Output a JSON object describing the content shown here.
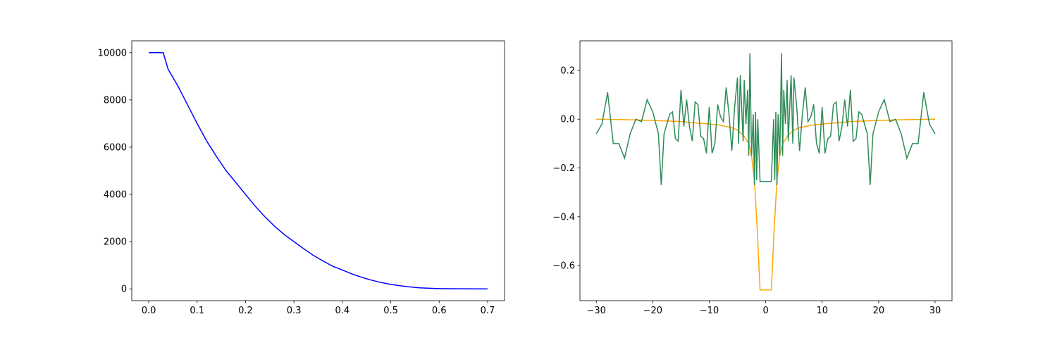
{
  "chart_data": [
    {
      "type": "line",
      "x": [
        0,
        0.02,
        0.03,
        0.04,
        0.06,
        0.08,
        0.1,
        0.12,
        0.14,
        0.16,
        0.18,
        0.2,
        0.22,
        0.24,
        0.26,
        0.28,
        0.3,
        0.32,
        0.34,
        0.36,
        0.38,
        0.4,
        0.42,
        0.44,
        0.46,
        0.48,
        0.5,
        0.52,
        0.54,
        0.56,
        0.58,
        0.6,
        0.62,
        0.65,
        0.7
      ],
      "series": [
        {
          "color": "#0000ff",
          "values": [
            10000,
            10000,
            10000,
            9300,
            8600,
            7800,
            7000,
            6250,
            5600,
            5000,
            4500,
            4000,
            3500,
            3050,
            2650,
            2300,
            2000,
            1700,
            1420,
            1180,
            960,
            800,
            630,
            490,
            370,
            270,
            190,
            130,
            80,
            45,
            25,
            12,
            5,
            2,
            0
          ]
        }
      ],
      "xlim": [
        -0.035,
        0.735
      ],
      "ylim": [
        -500,
        10500
      ],
      "xticks": [
        {
          "value": 0,
          "label": "0.0"
        },
        0.1,
        0.2,
        0.3,
        0.4,
        0.5,
        0.6,
        0.7
      ],
      "yticks": [
        0,
        2000,
        4000,
        6000,
        8000,
        10000
      ]
    },
    {
      "type": "line",
      "series": [
        {
          "color": "#ffa500",
          "x": [
            -30,
            -25,
            -20,
            -15,
            -10,
            -8,
            -6,
            -5,
            -4,
            -3,
            -2.5,
            -2,
            -1.5,
            -1,
            1,
            1.5,
            2,
            2.5,
            3,
            4,
            5,
            6,
            8,
            10,
            15,
            20,
            25,
            30
          ],
          "values": [
            0,
            -0.002,
            -0.005,
            -0.01,
            -0.02,
            -0.025,
            -0.035,
            -0.045,
            -0.065,
            -0.1,
            -0.15,
            -0.25,
            -0.45,
            -0.7,
            -0.7,
            -0.45,
            -0.25,
            -0.15,
            -0.1,
            -0.065,
            -0.045,
            -0.035,
            -0.025,
            -0.02,
            -0.01,
            -0.005,
            -0.002,
            0
          ]
        },
        {
          "color": "#2e8b57",
          "x": [
            -30,
            -29,
            -28,
            -27,
            -26,
            -25,
            -24,
            -23,
            -22,
            -21,
            -20,
            -19,
            -18.5,
            -18,
            -17,
            -16.5,
            -16,
            -15.5,
            -15,
            -14.5,
            -14,
            -13.5,
            -13,
            -12.5,
            -12,
            -11.5,
            -11,
            -10.5,
            -10,
            -9.5,
            -9,
            -8.5,
            -8,
            -7.5,
            -7,
            -6.5,
            -6,
            -5.5,
            -5,
            -4.8,
            -4.5,
            -4,
            -3.8,
            -3.5,
            -3.2,
            -3,
            -2.8,
            -2.5,
            -2.2,
            -2,
            -1.8,
            -1.6,
            -1.4,
            -1,
            1,
            1.4,
            1.6,
            1.8,
            2,
            2.2,
            2.5,
            2.8,
            3,
            3.2,
            3.5,
            3.8,
            4,
            4.5,
            4.8,
            5,
            5.5,
            6,
            6.5,
            7,
            7.5,
            8,
            8.5,
            9,
            9.5,
            10,
            10.5,
            11,
            11.5,
            12,
            12.5,
            13,
            13.5,
            14,
            14.5,
            15,
            15.5,
            16,
            16.5,
            17,
            18,
            18.5,
            19,
            20,
            21,
            22,
            23,
            24,
            25,
            26,
            27,
            28,
            29,
            30
          ],
          "values": [
            -0.06,
            -0.02,
            0.11,
            -0.1,
            -0.1,
            -0.16,
            -0.06,
            0,
            -0.01,
            0.08,
            0.03,
            -0.06,
            -0.27,
            -0.06,
            0.02,
            0.03,
            -0.08,
            -0.09,
            0.12,
            -0.03,
            0.08,
            -0.03,
            -0.09,
            0.07,
            0.06,
            -0.07,
            -0.08,
            -0.14,
            0.05,
            -0.14,
            -0.1,
            0.06,
            0.01,
            -0.01,
            0.13,
            0.02,
            -0.13,
            0.05,
            0.17,
            -0.1,
            0.18,
            -0.09,
            0.16,
            -0.02,
            0.12,
            -0.15,
            0.27,
            -0.15,
            0.02,
            -0.27,
            0.03,
            -0.25,
            0,
            -0.255,
            -0.255,
            0,
            -0.25,
            0.03,
            -0.27,
            0.02,
            -0.15,
            0.27,
            -0.15,
            0.12,
            -0.02,
            0.16,
            -0.09,
            0.18,
            -0.1,
            0.17,
            0.05,
            -0.13,
            0.02,
            0.13,
            -0.01,
            0.01,
            0.06,
            -0.1,
            -0.14,
            0.05,
            -0.14,
            -0.08,
            -0.07,
            0.06,
            0.07,
            -0.09,
            -0.03,
            0.08,
            -0.03,
            0.12,
            -0.09,
            -0.08,
            0.03,
            0.02,
            -0.06,
            -0.27,
            -0.06,
            0.03,
            0.08,
            -0.01,
            0,
            -0.06,
            -0.16,
            -0.1,
            -0.1,
            0.11,
            -0.02,
            -0.06
          ]
        }
      ],
      "xlim": [
        -32.9,
        33
      ],
      "ylim": [
        -0.744,
        0.321
      ],
      "xticks": [
        {
          "value": -30,
          "label": "−30"
        },
        {
          "value": -20,
          "label": "−20"
        },
        {
          "value": -10,
          "label": "−10"
        },
        0,
        10,
        20,
        30
      ],
      "yticks": [
        {
          "value": -0.6,
          "label": "−0.6"
        },
        {
          "value": -0.4,
          "label": "−0.4"
        },
        {
          "value": -0.2,
          "label": "−0.2"
        },
        {
          "value": 0,
          "label": "0.0"
        },
        0.2
      ]
    }
  ]
}
